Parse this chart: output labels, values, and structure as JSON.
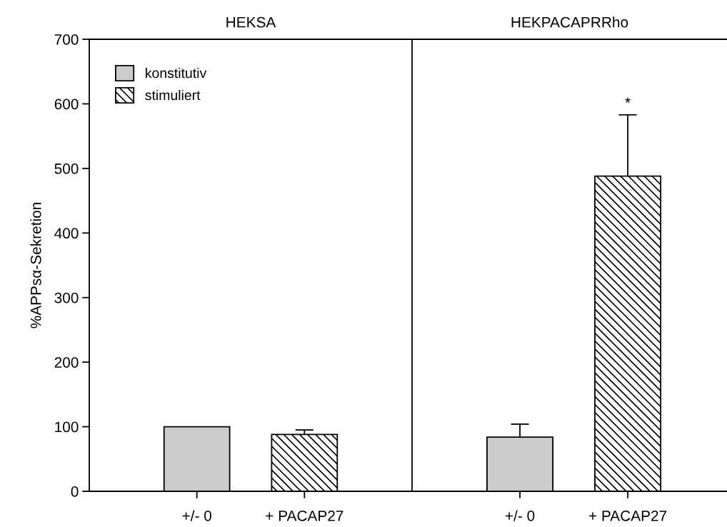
{
  "chart_data": [
    {
      "type": "bar",
      "title": "HEKSA",
      "ylabel": "%APPsα-Sekretion",
      "categories": [
        "+/- 0",
        "+ PACAP27"
      ],
      "ylim": [
        0,
        700
      ],
      "yticks": [
        0,
        100,
        200,
        300,
        400,
        500,
        600,
        700
      ],
      "legend": "top left",
      "grid": false,
      "series": [
        {
          "name": "konstitutiv",
          "color": "#cccccc",
          "values": [
            100,
            null
          ],
          "errors": [
            null,
            null
          ]
        },
        {
          "name": "stimuliert",
          "color": "#000000",
          "values": [
            null,
            88
          ],
          "errors": [
            null,
            [
              88,
              95
            ]
          ]
        }
      ]
    },
    {
      "type": "bar",
      "title": "HEKPACAPRRho",
      "categories": [
        "+/- 0",
        "+ PACAP27"
      ],
      "ylim": [
        0,
        700
      ],
      "tick_labels": "x",
      "grid": false,
      "annotations": [
        "*"
      ],
      "series": [
        {
          "color": "#cccccc",
          "values": [
            84,
            null
          ],
          "errors": [
            [
              84,
              104
            ],
            null
          ]
        },
        {
          "color": "#000000",
          "values": [
            null,
            488
          ],
          "errors": [
            null,
            [
              488,
              583
            ]
          ]
        }
      ]
    }
  ]
}
